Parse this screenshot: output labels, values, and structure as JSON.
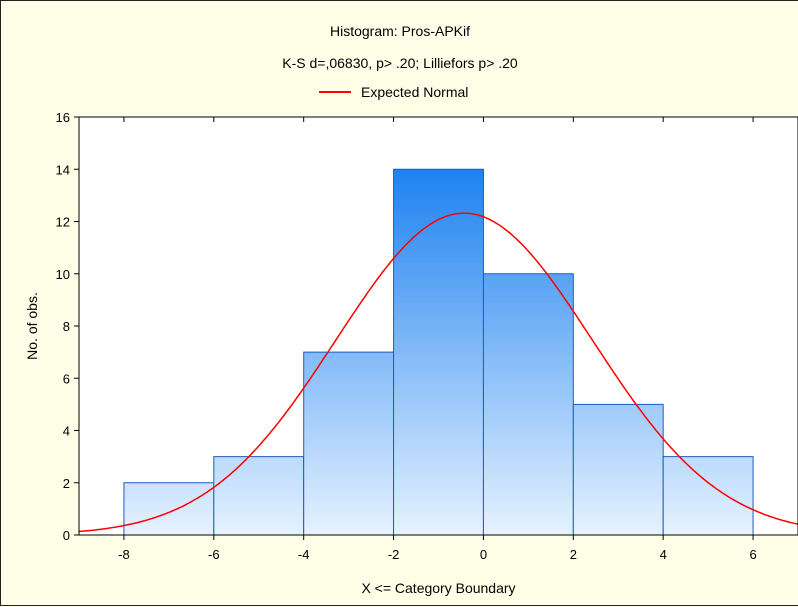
{
  "chart_data": {
    "type": "bar",
    "title": "Histogram: Pros-APKif",
    "subtitle": "K-S d=,06830, p> .20; Lilliefors p> .20",
    "legend": [
      "Expected Normal"
    ],
    "xlabel": "X <= Category Boundary",
    "ylabel": "No. of obs.",
    "bins": [
      {
        "from": -8,
        "to": -6,
        "count": 2
      },
      {
        "from": -6,
        "to": -4,
        "count": 3
      },
      {
        "from": -4,
        "to": -2,
        "count": 7
      },
      {
        "from": -2,
        "to": 0,
        "count": 14
      },
      {
        "from": 0,
        "to": 2,
        "count": 10
      },
      {
        "from": 2,
        "to": 4,
        "count": 5
      },
      {
        "from": 4,
        "to": 6,
        "count": 3
      }
    ],
    "normal_curve": {
      "mean": -0.43,
      "sd": 2.85,
      "n": 44,
      "bin_width": 2
    },
    "xlim": [
      -9,
      7
    ],
    "ylim": [
      0,
      16
    ],
    "xticks": [
      "-8",
      "-6",
      "-4",
      "-2",
      "0",
      "2",
      "4",
      "6"
    ],
    "yticks": [
      "0",
      "2",
      "4",
      "6",
      "8",
      "10",
      "12",
      "14",
      "16"
    ],
    "grid": false,
    "legend_position": "top-center",
    "colors": {
      "bar_top": "#1E82F0",
      "bar_bottom": "#E6F2FF",
      "bar_edge": "#1F5AC8",
      "curve": "#FF0000",
      "plot_bg": "#FFFFFF",
      "page_bg": "#FFFFE8"
    }
  }
}
